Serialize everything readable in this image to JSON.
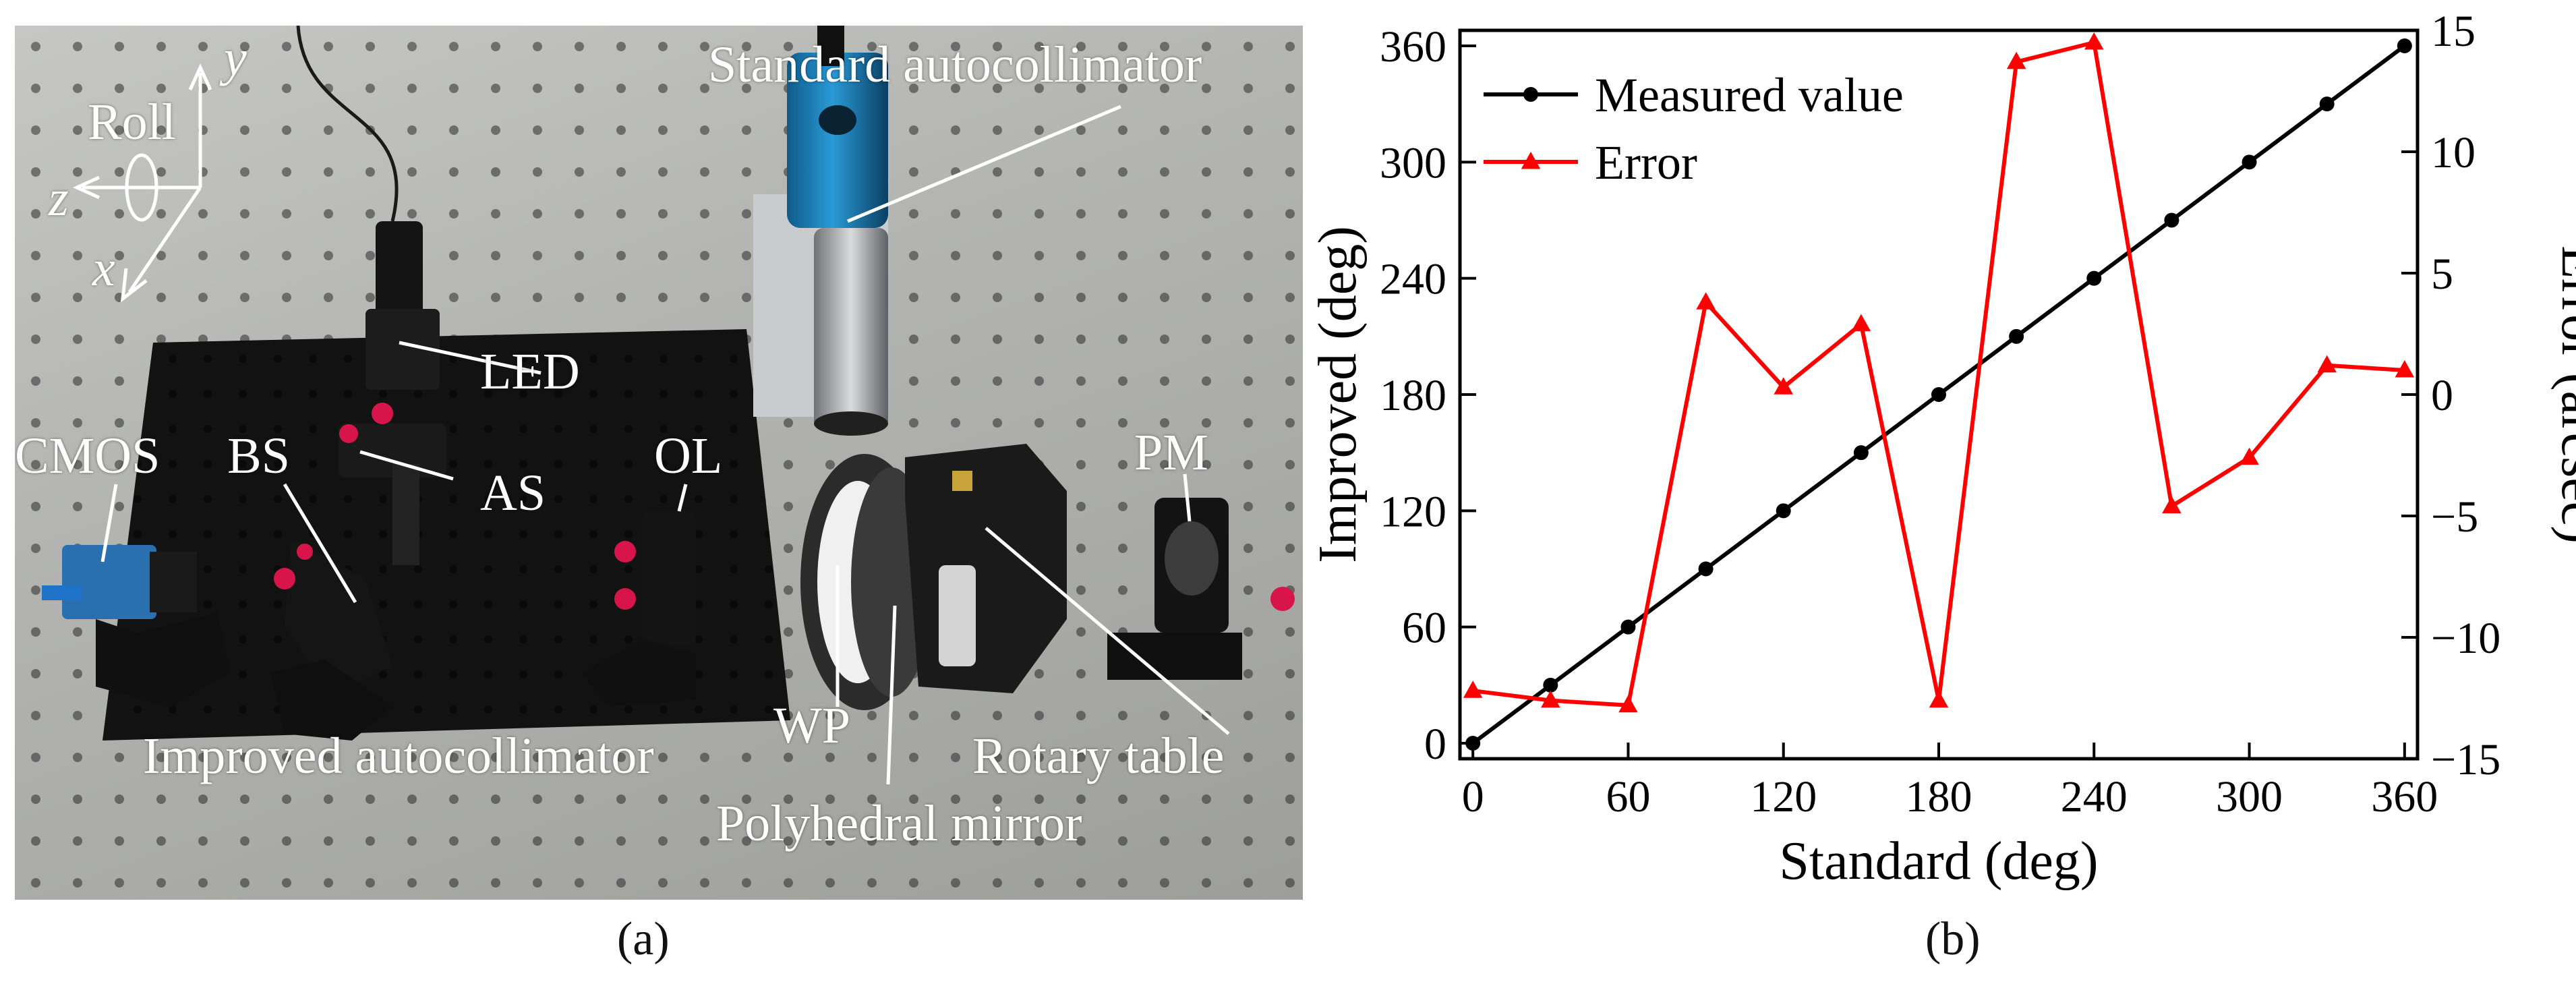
{
  "panel_a": {
    "caption": "(a)",
    "labels": {
      "roll": "Roll",
      "axis_y": "y",
      "axis_z": "z",
      "axis_x": "x",
      "standard_autocollimator": "Standard autocollimator",
      "led": "LED",
      "cmos": "CMOS",
      "bs": "BS",
      "as": "AS",
      "ol": "OL",
      "pm": "PM",
      "wp": "WP",
      "improved_autocollimator": "Improved autocollimator",
      "rotary_table": "Rotary table",
      "polyhedral_mirror": "Polyhedral mirror"
    }
  },
  "panel_b": {
    "caption": "(b)"
  },
  "chart_data": {
    "type": "line",
    "x": [
      0,
      30,
      60,
      90,
      120,
      150,
      180,
      210,
      240,
      270,
      300,
      330,
      360
    ],
    "xlabel": "Standard (deg)",
    "xlim": [
      -5,
      365
    ],
    "xticks": [
      0,
      60,
      120,
      180,
      240,
      300,
      360
    ],
    "ylabel": "Improved (deg)",
    "ylim": [
      -8,
      368
    ],
    "yticks": [
      0,
      60,
      120,
      180,
      240,
      300,
      360
    ],
    "y2label": "Error (arcsec)",
    "y2lim": [
      -15,
      15
    ],
    "y2ticks": [
      -15,
      -10,
      -5,
      0,
      5,
      10,
      15
    ],
    "grid": false,
    "legend_position": "top-left",
    "series": [
      {
        "name": "Measured value",
        "axis": "left",
        "marker": "circle",
        "color": "#000000",
        "values": [
          0,
          30,
          60,
          90,
          120,
          150,
          180,
          210,
          240,
          270,
          300,
          330,
          360
        ]
      },
      {
        "name": "Error",
        "axis": "right",
        "marker": "triangle",
        "color": "#ff0000",
        "values": [
          -12.2,
          -12.6,
          -12.8,
          3.8,
          0.3,
          2.9,
          -12.6,
          13.7,
          14.5,
          -4.6,
          -2.6,
          1.2,
          1.0
        ]
      }
    ]
  }
}
